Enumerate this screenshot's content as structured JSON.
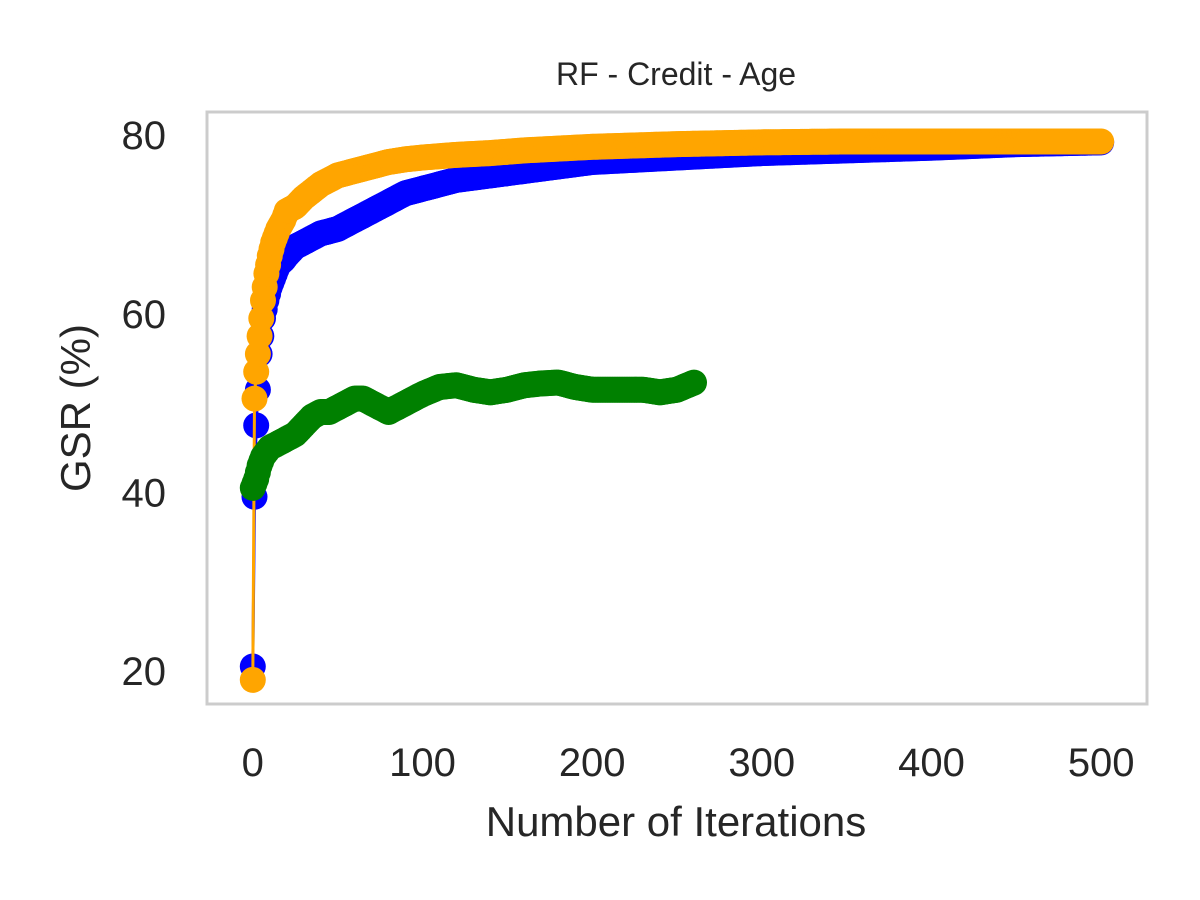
{
  "chart_data": {
    "type": "line",
    "title": "RF - Credit - Age",
    "xlabel": "Number of Iterations",
    "ylabel": "GSR (%)",
    "xlim": [
      -27,
      527
    ],
    "ylim": [
      16.3,
      82.6
    ],
    "xticks": [
      0,
      100,
      200,
      300,
      400,
      500
    ],
    "xtick_labels": [
      "0",
      "100",
      "200",
      "300",
      "400",
      "500"
    ],
    "yticks": [
      20,
      40,
      60,
      80
    ],
    "ytick_labels": [
      "20",
      "40",
      "60",
      "80"
    ],
    "grid": false,
    "legend": "none",
    "frame_color": "#cccccc",
    "series": [
      {
        "color": "#0000ff",
        "x": [
          0,
          1,
          2,
          3,
          4,
          5,
          6,
          8,
          10,
          12,
          15,
          18,
          20,
          25,
          30,
          40,
          50,
          60,
          70,
          80,
          90,
          100,
          120,
          140,
          160,
          180,
          200,
          250,
          300,
          350,
          400,
          450,
          500
        ],
        "y": [
          20.5,
          39.5,
          47.5,
          51.5,
          55.5,
          57.5,
          59.5,
          61.5,
          63.0,
          64.0,
          65.5,
          66.0,
          66.5,
          67.5,
          68.0,
          69.0,
          69.5,
          70.5,
          71.5,
          72.5,
          73.5,
          74.0,
          75.0,
          75.5,
          76.0,
          76.5,
          77.0,
          77.5,
          78.0,
          78.3,
          78.6,
          79.0,
          79.2
        ]
      },
      {
        "color": "#ffa500",
        "x": [
          0,
          1,
          2,
          3,
          4,
          5,
          6,
          7,
          8,
          10,
          12,
          15,
          18,
          20,
          25,
          30,
          40,
          50,
          60,
          70,
          80,
          90,
          100,
          120,
          140,
          160,
          180,
          200,
          250,
          300,
          350,
          400,
          450,
          500
        ],
        "y": [
          19.0,
          50.5,
          53.5,
          55.5,
          57.5,
          59.5,
          61.5,
          63.0,
          64.5,
          66.5,
          68.0,
          69.5,
          70.5,
          71.5,
          72.0,
          73.0,
          74.5,
          75.5,
          76.0,
          76.5,
          77.0,
          77.3,
          77.5,
          77.8,
          78.0,
          78.3,
          78.5,
          78.7,
          79.0,
          79.2,
          79.3,
          79.3,
          79.3,
          79.3
        ]
      },
      {
        "color": "#008000",
        "x": [
          0,
          2,
          4,
          6,
          8,
          10,
          15,
          20,
          25,
          30,
          35,
          40,
          45,
          50,
          55,
          60,
          65,
          70,
          75,
          80,
          85,
          90,
          95,
          100,
          110,
          120,
          130,
          140,
          150,
          160,
          170,
          180,
          190,
          200,
          210,
          220,
          230,
          240,
          250,
          260
        ],
        "y": [
          40.5,
          41.5,
          43.0,
          44.0,
          44.5,
          45.0,
          45.5,
          46.0,
          46.5,
          47.5,
          48.5,
          49.0,
          49.0,
          49.5,
          50.0,
          50.5,
          50.5,
          50.0,
          49.5,
          49.0,
          49.5,
          50.0,
          50.5,
          51.0,
          51.8,
          52.0,
          51.5,
          51.2,
          51.5,
          52.0,
          52.2,
          52.3,
          51.8,
          51.5,
          51.5,
          51.5,
          51.5,
          51.2,
          51.5,
          52.3
        ]
      }
    ]
  }
}
